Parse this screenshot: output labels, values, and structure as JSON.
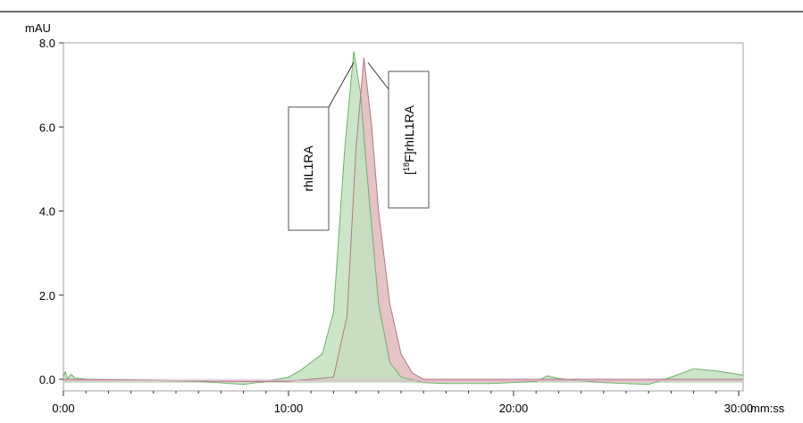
{
  "chart_data": {
    "type": "area",
    "ylabel": "mAU",
    "xunit": "mm:ss",
    "xlim": [
      0,
      30.2
    ],
    "ylim": [
      -0.2,
      8.0
    ],
    "yticks": [
      0.0,
      2.0,
      4.0,
      6.0,
      8.0
    ],
    "ytick_labels": [
      "0.0",
      "2.0",
      "4.0",
      "6.0",
      "8.0"
    ],
    "xticks": [
      0,
      10,
      20,
      30
    ],
    "xtick_labels": [
      "0:00",
      "10:00",
      "20:00",
      "30:00"
    ],
    "series": [
      {
        "name": "rhIL1RA",
        "color": "#c2e0c0",
        "edge": "#6fb06a",
        "points": [
          [
            0,
            0.05
          ],
          [
            0.08,
            0.18
          ],
          [
            0.18,
            0.02
          ],
          [
            0.35,
            0.12
          ],
          [
            0.5,
            0.03
          ],
          [
            1.0,
            0.0
          ],
          [
            3.0,
            -0.02
          ],
          [
            6.0,
            -0.05
          ],
          [
            8.0,
            -0.12
          ],
          [
            9.0,
            -0.05
          ],
          [
            10.0,
            0.05
          ],
          [
            10.5,
            0.2
          ],
          [
            11.0,
            0.4
          ],
          [
            11.5,
            0.6
          ],
          [
            12.0,
            1.6
          ],
          [
            12.5,
            5.5
          ],
          [
            12.9,
            7.8
          ],
          [
            13.2,
            6.8
          ],
          [
            13.5,
            4.8
          ],
          [
            14.0,
            1.8
          ],
          [
            14.5,
            0.4
          ],
          [
            15.0,
            0.05
          ],
          [
            16.0,
            -0.08
          ],
          [
            17.0,
            -0.1
          ],
          [
            19.0,
            -0.1
          ],
          [
            21.0,
            -0.05
          ],
          [
            21.5,
            0.08
          ],
          [
            22.0,
            0.02
          ],
          [
            24.0,
            -0.08
          ],
          [
            26.0,
            -0.12
          ],
          [
            27.0,
            0.05
          ],
          [
            28.0,
            0.25
          ],
          [
            29.0,
            0.2
          ],
          [
            30.2,
            0.1
          ]
        ]
      },
      {
        "name": "[18F]rhIL1RA",
        "color": "#e0b4b7",
        "edge": "#b07a7f",
        "points": [
          [
            0,
            0.0
          ],
          [
            8.0,
            -0.05
          ],
          [
            10.0,
            -0.05
          ],
          [
            12.0,
            0.05
          ],
          [
            12.6,
            1.5
          ],
          [
            13.0,
            5.5
          ],
          [
            13.35,
            7.65
          ],
          [
            13.7,
            6.0
          ],
          [
            14.0,
            4.0
          ],
          [
            14.5,
            1.8
          ],
          [
            15.0,
            0.6
          ],
          [
            15.5,
            0.15
          ],
          [
            16.0,
            0.0
          ],
          [
            30.2,
            0.0
          ]
        ]
      }
    ],
    "annotations": [
      {
        "text": "rhIL1RA",
        "target": "rhIL1RA peak"
      },
      {
        "text_prefix": "[",
        "superscript": "18",
        "text_suffix": "F]rhIL1RA",
        "target": "[18F]rhIL1RA peak"
      }
    ]
  }
}
